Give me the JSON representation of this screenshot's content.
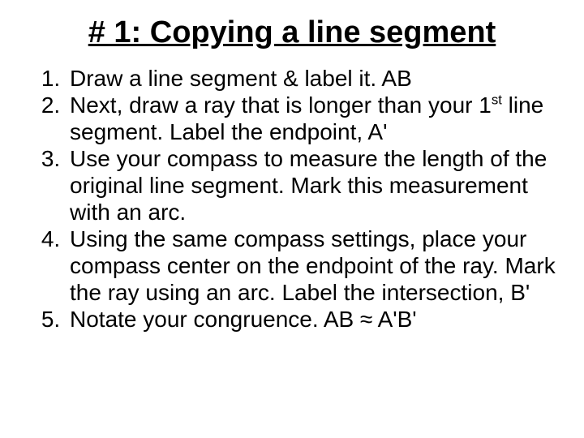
{
  "type": "document-slide",
  "background_color": "#ffffff",
  "text_color": "#000000",
  "title": {
    "text": "# 1: Copying a line segment",
    "font_size_pt": 38,
    "font_weight": "bold",
    "underline": true,
    "align": "center"
  },
  "list": {
    "ordered": true,
    "font_size_pt": 28,
    "items": [
      {
        "html": "Draw a line segment & label it. AB"
      },
      {
        "html": "Next, draw a ray that is longer than your 1<sup>st</sup> line segment. Label the endpoint, A'"
      },
      {
        "html": "Use your compass to measure the length of the original line segment. Mark this measurement with an arc."
      },
      {
        "html": "Using the same compass settings, place your compass center on the endpoint of the ray. Mark the ray using an arc. Label the intersection, B'"
      },
      {
        "html": "Notate your congruence.  AB ≈ A'B'"
      }
    ]
  }
}
